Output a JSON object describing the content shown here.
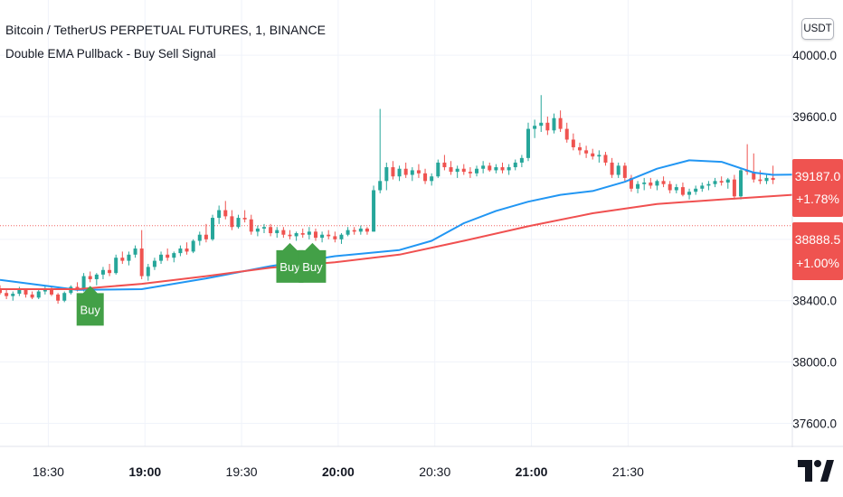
{
  "header": {
    "symbol_title": "Bitcoin / TetherUS PERPETUAL FUTURES, 1, BINANCE",
    "indicator_title": "Double EMA Pullback - Buy Sell Signal"
  },
  "currency_button": "USDT",
  "price_badges": {
    "ema_value": "39187.0",
    "ema_change": "+1.78%",
    "reference_price": "38888.5",
    "reference_change": "+1.00%"
  },
  "colors": {
    "up_candle": "#26a69a",
    "down_candle": "#ef5350",
    "fast_ema": "#2196f3",
    "slow_ema": "#f05050",
    "buy_signal": "#43a047",
    "badge": "#ef5350",
    "grid": "#f0f3fa"
  },
  "chart_data": {
    "type": "line",
    "title": "Bitcoin / TetherUS PERPETUAL FUTURES, 1, BINANCE",
    "x_ticks": [
      {
        "t": "18:30",
        "bold": false
      },
      {
        "t": "19:00",
        "bold": true
      },
      {
        "t": "19:30",
        "bold": false
      },
      {
        "t": "20:00",
        "bold": true
      },
      {
        "t": "20:30",
        "bold": false
      },
      {
        "t": "21:00",
        "bold": true
      },
      {
        "t": "21:30",
        "bold": false
      }
    ],
    "y_ticks": [
      37600.0,
      38000.0,
      38400.0,
      38800.0,
      39200.0,
      39600.0,
      40000.0
    ],
    "y_tick_labels": [
      "37600.0",
      "38000.0",
      "38400.0",
      "38800.0",
      "39200.0",
      "39600.0",
      "40000.0"
    ],
    "y_range": [
      37450,
      40360
    ],
    "x_range_minutes": [
      -24,
      222
    ],
    "grid": true,
    "series": [
      {
        "name": "",
        "kind": "ema_fast",
        "color": "#2196f3",
        "points": [
          [
            -24,
            38535
          ],
          [
            0,
            38470
          ],
          [
            20,
            38475
          ],
          [
            40,
            38545
          ],
          [
            60,
            38625
          ],
          [
            80,
            38690
          ],
          [
            100,
            38730
          ],
          [
            110,
            38790
          ],
          [
            120,
            38905
          ],
          [
            130,
            38985
          ],
          [
            140,
            39045
          ],
          [
            150,
            39090
          ],
          [
            160,
            39115
          ],
          [
            170,
            39175
          ],
          [
            180,
            39260
          ],
          [
            190,
            39315
          ],
          [
            200,
            39305
          ],
          [
            210,
            39235
          ],
          [
            216,
            39220
          ],
          [
            222,
            39222
          ]
        ]
      },
      {
        "name": "",
        "kind": "ema_slow",
        "color": "#f05050",
        "points": [
          [
            -24,
            38475
          ],
          [
            0,
            38475
          ],
          [
            20,
            38510
          ],
          [
            40,
            38560
          ],
          [
            60,
            38615
          ],
          [
            80,
            38650
          ],
          [
            100,
            38700
          ],
          [
            120,
            38790
          ],
          [
            140,
            38885
          ],
          [
            160,
            38970
          ],
          [
            180,
            39030
          ],
          [
            200,
            39060
          ],
          [
            222,
            39090
          ]
        ]
      },
      {
        "name": "",
        "kind": "candles",
        "note": "1-minute OHLC samples (approximate)",
        "ohlc": [
          [
            -24,
            38480,
            38500,
            38440,
            38450
          ],
          [
            -22,
            38450,
            38470,
            38410,
            38430
          ],
          [
            -20,
            38430,
            38460,
            38400,
            38445
          ],
          [
            -18,
            38445,
            38490,
            38430,
            38470
          ],
          [
            -16,
            38470,
            38480,
            38420,
            38440
          ],
          [
            -14,
            38440,
            38460,
            38410,
            38420
          ],
          [
            -12,
            38420,
            38470,
            38410,
            38460
          ],
          [
            -10,
            38460,
            38500,
            38440,
            38480
          ],
          [
            -8,
            38480,
            38490,
            38430,
            38440
          ],
          [
            -6,
            38440,
            38450,
            38380,
            38400
          ],
          [
            -4,
            38400,
            38460,
            38390,
            38450
          ],
          [
            -2,
            38450,
            38500,
            38440,
            38490
          ],
          [
            0,
            38490,
            38520,
            38460,
            38470
          ],
          [
            2,
            38470,
            38580,
            38460,
            38560
          ],
          [
            4,
            38560,
            38590,
            38520,
            38540
          ],
          [
            6,
            38540,
            38580,
            38500,
            38570
          ],
          [
            8,
            38570,
            38620,
            38540,
            38600
          ],
          [
            10,
            38600,
            38640,
            38560,
            38580
          ],
          [
            12,
            38580,
            38700,
            38570,
            38680
          ],
          [
            14,
            38680,
            38720,
            38640,
            38660
          ],
          [
            16,
            38660,
            38720,
            38630,
            38700
          ],
          [
            18,
            38700,
            38760,
            38680,
            38740
          ],
          [
            20,
            38740,
            38860,
            38540,
            38560
          ],
          [
            22,
            38560,
            38640,
            38530,
            38620
          ],
          [
            24,
            38620,
            38680,
            38600,
            38660
          ],
          [
            26,
            38660,
            38720,
            38640,
            38700
          ],
          [
            28,
            38700,
            38740,
            38660,
            38680
          ],
          [
            30,
            38680,
            38720,
            38650,
            38710
          ],
          [
            32,
            38710,
            38760,
            38690,
            38740
          ],
          [
            34,
            38740,
            38780,
            38700,
            38720
          ],
          [
            36,
            38720,
            38800,
            38710,
            38790
          ],
          [
            38,
            38790,
            38850,
            38760,
            38830
          ],
          [
            40,
            38830,
            38900,
            38780,
            38800
          ],
          [
            42,
            38800,
            38960,
            38790,
            38940
          ],
          [
            44,
            38940,
            39020,
            38900,
            38990
          ],
          [
            46,
            38990,
            39050,
            38930,
            38950
          ],
          [
            48,
            38950,
            38990,
            38860,
            38880
          ],
          [
            50,
            38880,
            38960,
            38870,
            38940
          ],
          [
            52,
            38940,
            38990,
            38910,
            38930
          ],
          [
            54,
            38930,
            38960,
            38830,
            38850
          ],
          [
            56,
            38850,
            38890,
            38820,
            38870
          ],
          [
            58,
            38870,
            38900,
            38840,
            38880
          ],
          [
            60,
            38880,
            38900,
            38820,
            38840
          ],
          [
            62,
            38840,
            38880,
            38810,
            38860
          ],
          [
            64,
            38860,
            38880,
            38810,
            38830
          ],
          [
            66,
            38830,
            38860,
            38800,
            38820
          ],
          [
            68,
            38820,
            38850,
            38790,
            38840
          ],
          [
            70,
            38840,
            38870,
            38810,
            38830
          ],
          [
            72,
            38830,
            38880,
            38800,
            38850
          ],
          [
            74,
            38850,
            38870,
            38790,
            38810
          ],
          [
            76,
            38810,
            38850,
            38780,
            38830
          ],
          [
            78,
            38830,
            38860,
            38800,
            38820
          ],
          [
            80,
            38820,
            38850,
            38780,
            38800
          ],
          [
            82,
            38800,
            38840,
            38770,
            38830
          ],
          [
            84,
            38830,
            38880,
            38820,
            38860
          ],
          [
            86,
            38860,
            38880,
            38830,
            38850
          ],
          [
            88,
            38850,
            38890,
            38830,
            38870
          ],
          [
            90,
            38870,
            38880,
            38830,
            38850
          ],
          [
            92,
            38850,
            39150,
            38850,
            39120
          ],
          [
            94,
            39120,
            39650,
            39100,
            39180
          ],
          [
            96,
            39180,
            39300,
            39120,
            39270
          ],
          [
            98,
            39270,
            39310,
            39190,
            39210
          ],
          [
            100,
            39210,
            39280,
            39180,
            39260
          ],
          [
            102,
            39260,
            39300,
            39200,
            39220
          ],
          [
            104,
            39220,
            39270,
            39180,
            39250
          ],
          [
            106,
            39250,
            39290,
            39200,
            39230
          ],
          [
            108,
            39230,
            39260,
            39160,
            39180
          ],
          [
            110,
            39180,
            39230,
            39150,
            39210
          ],
          [
            112,
            39210,
            39320,
            39200,
            39300
          ],
          [
            114,
            39300,
            39350,
            39250,
            39270
          ],
          [
            116,
            39270,
            39310,
            39220,
            39240
          ],
          [
            118,
            39240,
            39280,
            39200,
            39260
          ],
          [
            120,
            39260,
            39290,
            39220,
            39240
          ],
          [
            122,
            39240,
            39270,
            39200,
            39230
          ],
          [
            124,
            39230,
            39280,
            39210,
            39260
          ],
          [
            126,
            39260,
            39310,
            39230,
            39280
          ],
          [
            128,
            39280,
            39300,
            39240,
            39250
          ],
          [
            130,
            39250,
            39290,
            39230,
            39270
          ],
          [
            132,
            39270,
            39300,
            39230,
            39250
          ],
          [
            134,
            39250,
            39290,
            39220,
            39270
          ],
          [
            136,
            39270,
            39320,
            39250,
            39300
          ],
          [
            138,
            39300,
            39350,
            39270,
            39330
          ],
          [
            140,
            39330,
            39560,
            39310,
            39520
          ],
          [
            142,
            39520,
            39580,
            39460,
            39540
          ],
          [
            144,
            39540,
            39740,
            39500,
            39560
          ],
          [
            146,
            39560,
            39600,
            39480,
            39510
          ],
          [
            148,
            39510,
            39620,
            39490,
            39590
          ],
          [
            150,
            39590,
            39640,
            39500,
            39520
          ],
          [
            152,
            39520,
            39560,
            39430,
            39450
          ],
          [
            154,
            39450,
            39490,
            39380,
            39400
          ],
          [
            156,
            39400,
            39430,
            39350,
            39380
          ],
          [
            158,
            39380,
            39410,
            39330,
            39360
          ],
          [
            160,
            39360,
            39390,
            39320,
            39340
          ],
          [
            162,
            39340,
            39380,
            39300,
            39350
          ],
          [
            164,
            39350,
            39370,
            39280,
            39300
          ],
          [
            166,
            39300,
            39330,
            39200,
            39220
          ],
          [
            168,
            39220,
            39300,
            39200,
            39280
          ],
          [
            170,
            39280,
            39300,
            39180,
            39200
          ],
          [
            172,
            39200,
            39220,
            39110,
            39130
          ],
          [
            174,
            39130,
            39180,
            39100,
            39160
          ],
          [
            176,
            39160,
            39200,
            39120,
            39170
          ],
          [
            178,
            39170,
            39200,
            39130,
            39150
          ],
          [
            180,
            39150,
            39190,
            39120,
            39180
          ],
          [
            182,
            39180,
            39210,
            39140,
            39160
          ],
          [
            184,
            39160,
            39180,
            39100,
            39120
          ],
          [
            186,
            39120,
            39160,
            39100,
            39140
          ],
          [
            188,
            39140,
            39170,
            39080,
            39090
          ],
          [
            190,
            39090,
            39130,
            39060,
            39110
          ],
          [
            192,
            39110,
            39150,
            39090,
            39130
          ],
          [
            194,
            39130,
            39170,
            39110,
            39150
          ],
          [
            196,
            39150,
            39180,
            39120,
            39160
          ],
          [
            198,
            39160,
            39200,
            39140,
            39180
          ],
          [
            200,
            39180,
            39210,
            39150,
            39170
          ],
          [
            202,
            39170,
            39200,
            39130,
            39190
          ],
          [
            204,
            39190,
            39220,
            39060,
            39080
          ],
          [
            206,
            39080,
            39260,
            39060,
            39250
          ],
          [
            208,
            39250,
            39420,
            39220,
            39240
          ],
          [
            210,
            39240,
            39360,
            39170,
            39190
          ],
          [
            212,
            39190,
            39250,
            39160,
            39180
          ],
          [
            214,
            39180,
            39220,
            39160,
            39200
          ],
          [
            216,
            39200,
            39280,
            39160,
            39187
          ]
        ]
      }
    ],
    "annotations": [
      {
        "type": "buy_signal",
        "label": "Buy",
        "x": 4
      },
      {
        "type": "buy_signal",
        "label": "Buy",
        "x": 66
      },
      {
        "type": "buy_signal",
        "label": "Buy",
        "x": 73
      }
    ],
    "horizontal_line": {
      "y": 38888.5,
      "style": "dotted"
    }
  }
}
